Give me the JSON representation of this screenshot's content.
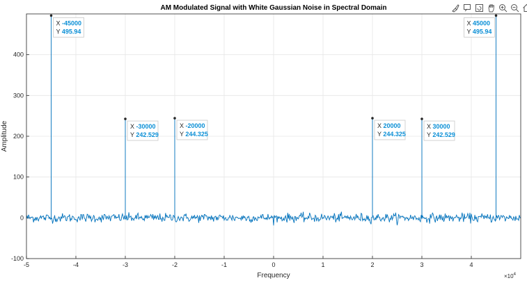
{
  "chart_data": {
    "type": "line",
    "title": "AM Modulated Signal with White Gaussian Noise in Spectral Domain",
    "xlabel": "Frequency",
    "ylabel": "Amplitude",
    "x_exponent_label": "×10",
    "x_exponent_power": "4",
    "xlim": [
      -50000,
      50000
    ],
    "ylim": [
      -100,
      500
    ],
    "xticks": [
      -50000,
      -40000,
      -30000,
      -20000,
      -10000,
      0,
      10000,
      20000,
      30000,
      40000
    ],
    "xtick_labels": [
      "-5",
      "-4",
      "-3",
      "-2",
      "-1",
      "0",
      "1",
      "2",
      "3",
      "4"
    ],
    "yticks": [
      -100,
      0,
      100,
      200,
      300,
      400
    ],
    "ytick_labels": [
      "-100",
      "0",
      "100",
      "200",
      "300",
      "400"
    ],
    "grid": true,
    "line_color": "#0072BD",
    "noise_level": 12,
    "peaks": [
      {
        "x": -45000,
        "y": 495.94
      },
      {
        "x": -30000,
        "y": 242.529
      },
      {
        "x": -20000,
        "y": 244.325
      },
      {
        "x": 20000,
        "y": 244.325
      },
      {
        "x": 30000,
        "y": 242.529
      },
      {
        "x": 45000,
        "y": 495.94
      }
    ],
    "datatips": [
      {
        "x_label": "X",
        "x_value": "-45000",
        "y_label": "Y",
        "y_value": "495.94"
      },
      {
        "x_label": "X",
        "x_value": "-30000",
        "y_label": "Y",
        "y_value": "242.529"
      },
      {
        "x_label": "X",
        "x_value": "-20000",
        "y_label": "Y",
        "y_value": "244.325"
      },
      {
        "x_label": "X",
        "x_value": "20000",
        "y_label": "Y",
        "y_value": "244.325"
      },
      {
        "x_label": "X",
        "x_value": "30000",
        "y_label": "Y",
        "y_value": "242.529"
      },
      {
        "x_label": "X",
        "x_value": "45000",
        "y_label": "Y",
        "y_value": "495.94"
      }
    ]
  },
  "toolbar": {
    "icons": [
      "brush-icon",
      "datatip-icon",
      "rotate-icon",
      "pan-icon",
      "zoom-in-icon",
      "zoom-out-icon",
      "home-icon"
    ]
  }
}
